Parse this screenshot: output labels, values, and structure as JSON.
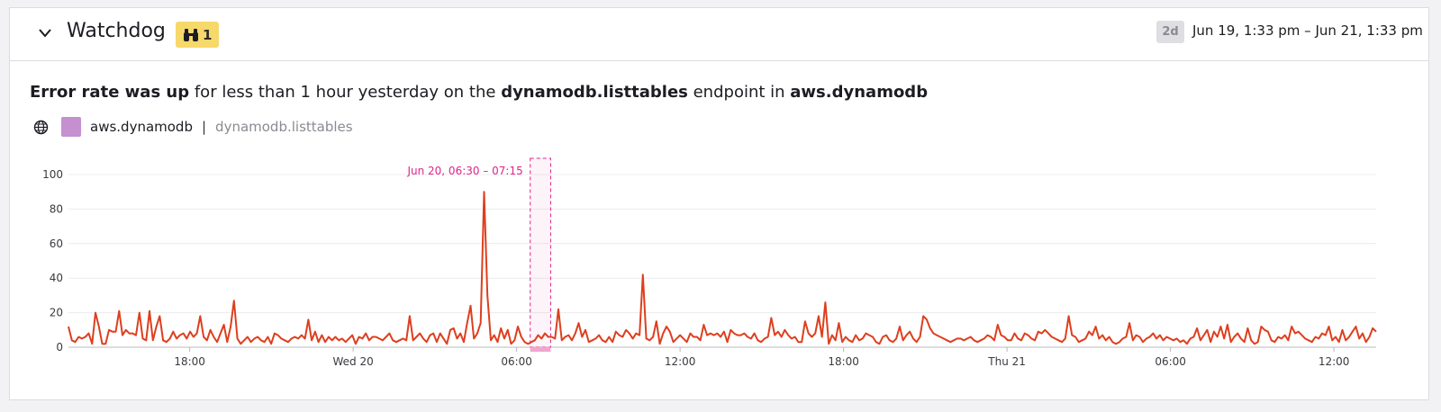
{
  "panel": {
    "title": "Watchdog",
    "alert_count": "1",
    "range_badge": "2d",
    "range_text": "Jun 19, 1:33 pm – Jun 21, 1:33 pm"
  },
  "headline": {
    "part1": "Error rate was up",
    "part2": " for less than 1 hour yesterday on the ",
    "part3": "dynamodb.listtables",
    "part4": " endpoint in ",
    "part5": "aws.dynamodb"
  },
  "tags": {
    "service": "aws.dynamodb",
    "separator": "|",
    "resource": "dynamodb.listtables",
    "service_color": "#c490d0"
  },
  "colors": {
    "line": "#dd3f1e",
    "highlight": "#e0248a",
    "grid": "#ececef"
  },
  "chart_data": {
    "type": "line",
    "ylim": [
      0,
      100
    ],
    "yticks": [
      0,
      20,
      40,
      60,
      80,
      100
    ],
    "xlim_hours": [
      0,
      48
    ],
    "xticks": [
      {
        "label": "18:00",
        "hour": 4.45
      },
      {
        "label": "Wed 20",
        "hour": 10.45
      },
      {
        "label": "06:00",
        "hour": 16.45
      },
      {
        "label": "12:00",
        "hour": 22.45
      },
      {
        "label": "18:00",
        "hour": 28.45
      },
      {
        "label": "Thu 21",
        "hour": 34.45
      },
      {
        "label": "06:00",
        "hour": 40.45
      },
      {
        "label": "12:00",
        "hour": 46.45
      }
    ],
    "highlight": {
      "label": "Jun 20, 06:30 – 07:15",
      "start_hour": 16.95,
      "end_hour": 17.7
    },
    "series": [
      {
        "values": [
          12,
          4,
          3,
          6,
          5,
          6,
          8,
          2,
          20,
          12,
          2,
          2,
          10,
          9,
          9,
          21,
          7,
          10,
          8,
          8,
          7,
          20,
          5,
          4,
          21,
          4,
          12,
          18,
          4,
          3,
          5,
          9,
          5,
          7,
          8,
          5,
          9,
          6,
          8,
          18,
          6,
          4,
          10,
          6,
          3,
          8,
          13,
          3,
          12,
          27,
          5,
          2,
          4,
          6,
          3,
          5,
          6,
          4,
          3,
          6,
          2,
          8,
          7,
          5,
          4,
          3,
          5,
          6,
          5,
          7,
          5,
          16,
          4,
          9,
          3,
          7,
          3,
          6,
          4,
          6,
          4,
          5,
          3,
          5,
          7,
          2,
          6,
          5,
          8,
          4,
          6,
          6,
          5,
          4,
          6,
          8,
          4,
          3,
          4,
          5,
          4,
          18,
          4,
          6,
          8,
          5,
          3,
          7,
          8,
          3,
          8,
          5,
          2,
          10,
          11,
          5,
          8,
          3,
          14,
          24,
          5,
          8,
          14,
          90,
          30,
          4,
          7,
          3,
          11,
          5,
          10,
          2,
          4,
          12,
          6,
          3,
          2,
          3,
          4,
          7,
          5,
          8,
          6,
          6,
          5,
          22,
          4,
          6,
          7,
          4,
          8,
          14,
          6,
          10,
          3,
          4,
          5,
          7,
          4,
          3,
          6,
          3,
          9,
          7,
          6,
          10,
          8,
          5,
          8,
          7,
          42,
          5,
          4,
          6,
          15,
          2,
          8,
          12,
          9,
          3,
          5,
          7,
          5,
          3,
          8,
          6,
          6,
          4,
          13,
          7,
          8,
          7,
          8,
          6,
          9,
          3,
          10,
          8,
          7,
          7,
          8,
          6,
          5,
          8,
          4,
          3,
          5,
          6,
          17,
          7,
          9,
          6,
          10,
          7,
          5,
          6,
          3,
          3,
          15,
          8,
          6,
          8,
          18,
          6,
          26,
          2,
          7,
          4,
          14,
          3,
          6,
          4,
          3,
          7,
          4,
          5,
          8,
          7,
          6,
          3,
          2,
          6,
          7,
          4,
          3,
          5,
          12,
          4,
          7,
          9,
          5,
          3,
          6,
          18,
          16,
          11,
          8,
          7,
          6,
          5,
          4,
          3,
          4,
          5,
          5,
          4,
          5,
          6,
          4,
          3,
          4,
          5,
          7,
          6,
          4,
          13,
          7,
          6,
          4,
          4,
          8,
          5,
          4,
          8,
          7,
          5,
          4,
          9,
          8,
          10,
          8,
          6,
          5,
          4,
          3,
          5,
          18,
          7,
          6,
          3,
          4,
          5,
          9,
          7,
          12,
          5,
          7,
          4,
          6,
          3,
          2,
          3,
          5,
          6,
          14,
          4,
          7,
          6,
          3,
          5,
          6,
          8,
          5,
          7,
          4,
          6,
          5,
          4,
          5,
          3,
          4,
          2,
          5,
          6,
          11,
          4,
          7,
          10,
          3,
          9,
          6,
          12,
          5,
          13,
          3,
          6,
          8,
          5,
          3,
          11,
          4,
          2,
          3,
          12,
          10,
          9,
          4,
          3,
          6,
          5,
          7,
          4,
          12,
          8,
          9,
          7,
          5,
          4,
          3,
          6,
          5,
          8,
          7,
          12,
          4,
          6,
          3,
          10,
          4,
          6,
          9,
          12,
          5,
          8,
          3,
          6,
          11,
          9
        ]
      }
    ]
  }
}
